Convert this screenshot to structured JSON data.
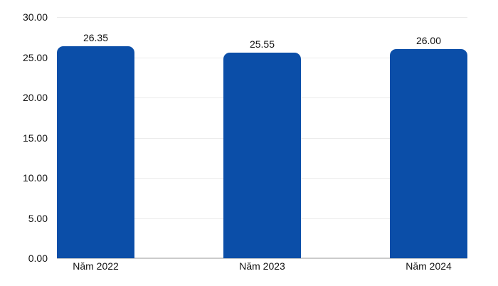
{
  "chart_data": {
    "type": "bar",
    "title": "",
    "xlabel": "",
    "ylabel": "",
    "categories": [
      "Năm 2022",
      "Năm 2023",
      "Năm 2024"
    ],
    "values": [
      26.35,
      25.55,
      26.0
    ],
    "value_labels": [
      "26.35",
      "25.55",
      "26.00"
    ],
    "y_tick_labels": [
      "30.00",
      "25.00",
      "20.00",
      "15.00",
      "10.00",
      "5.00",
      "0.00"
    ],
    "y_tick_values": [
      30,
      25,
      20,
      15,
      10,
      5,
      0
    ],
    "ylim": [
      0,
      30
    ],
    "grid": "horizontal gridlines on",
    "legend": "none",
    "bar_color": "#0B4EA8",
    "gridline_color": "#EBEBEB",
    "baseline_color": "#CBCBCB",
    "background_color": "#FFFFFF",
    "text_color": "#111111"
  }
}
